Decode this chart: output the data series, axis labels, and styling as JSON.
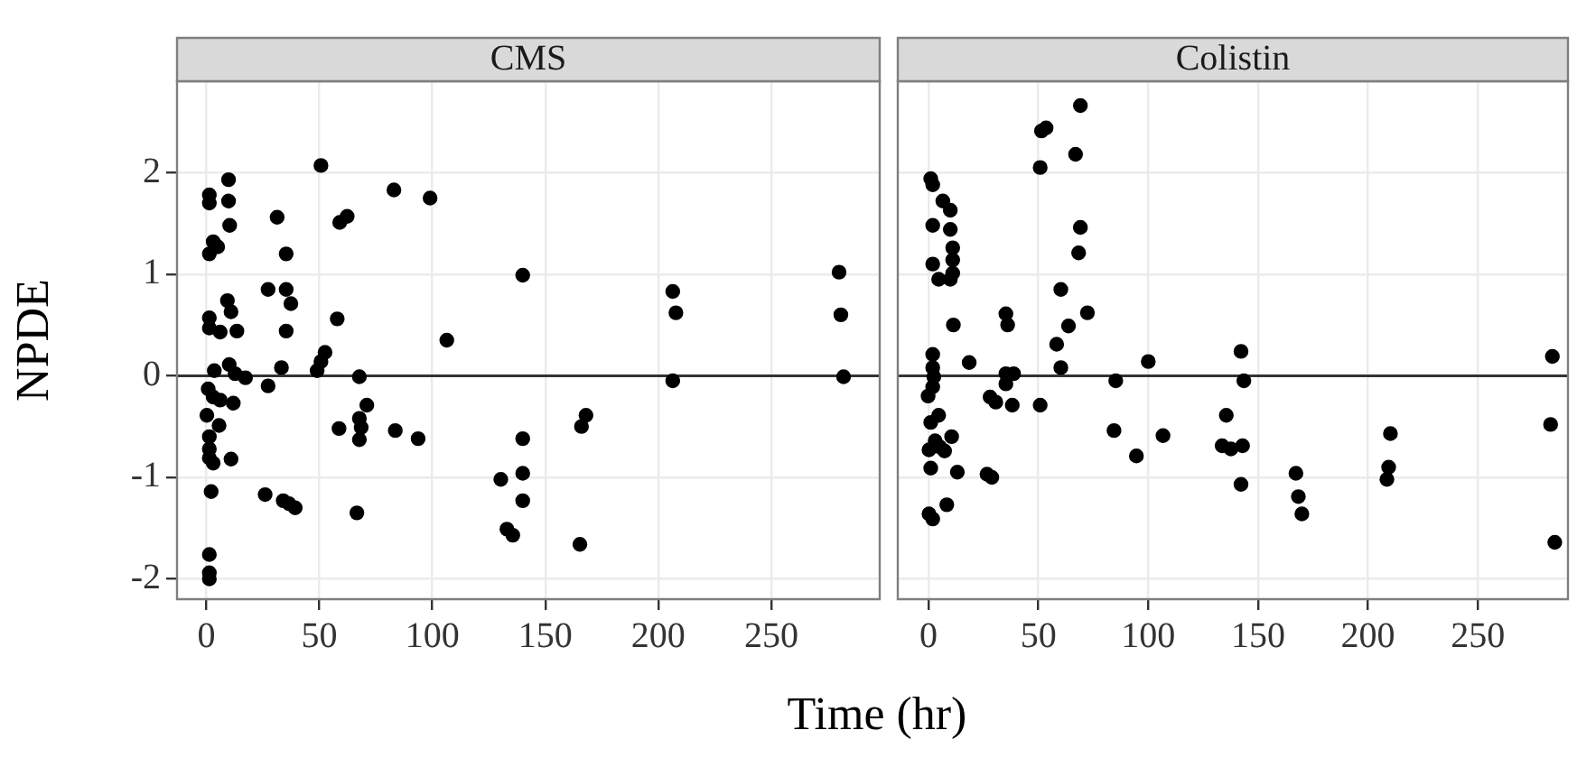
{
  "chart_data": [
    {
      "type": "scatter",
      "title": "CMS",
      "ylabel": "NPDE",
      "xlabel": "Time (hr)",
      "color": "#000000",
      "marker": "circle",
      "grid": true,
      "xlim": [
        -13,
        298
      ],
      "ylim": [
        -2.2,
        2.9
      ],
      "xticks": [
        0,
        50,
        100,
        150,
        200,
        250
      ],
      "yticks": [
        -2,
        -1,
        0,
        1,
        2
      ],
      "ref_lines": [
        {
          "axis": "y",
          "value": 0,
          "color": "#333333"
        }
      ],
      "x": [
        1.3,
        1.3,
        9.8,
        9.8,
        10.3,
        3,
        1.3,
        5,
        31.3,
        35.3,
        50.7,
        59,
        62.3,
        83,
        99,
        140,
        27.3,
        35.3,
        37.4,
        9.3,
        10.9,
        1.3,
        1.3,
        6.1,
        13.5,
        35.3,
        57.9,
        106.4,
        52.5,
        50.7,
        49,
        33.2,
        3.5,
        10.1,
        12.7,
        17.3,
        67.7,
        0.8,
        27.3,
        3,
        6.1,
        11.9,
        71,
        0.2,
        5.6,
        67.7,
        68.5,
        58.7,
        83.6,
        93.7,
        67.7,
        140,
        1.3,
        1.3,
        1.3,
        3,
        10.9,
        140,
        130.3,
        140,
        2.1,
        26,
        34,
        36.6,
        39.3,
        66.6,
        133,
        135.6,
        1.3,
        1.3,
        1.3,
        168,
        166,
        165.3,
        206.4,
        207.8,
        206.4,
        280,
        280.8,
        282
      ],
      "values": [
        1.78,
        1.7,
        1.93,
        1.72,
        1.48,
        1.32,
        1.2,
        1.27,
        1.56,
        1.2,
        2.07,
        1.51,
        1.57,
        1.83,
        1.75,
        0.99,
        0.85,
        0.85,
        0.71,
        0.74,
        0.63,
        0.57,
        0.47,
        0.43,
        0.44,
        0.44,
        0.56,
        0.35,
        0.23,
        0.14,
        0.05,
        0.08,
        0.05,
        0.11,
        0.02,
        -0.02,
        -0.01,
        -0.13,
        -0.1,
        -0.21,
        -0.24,
        -0.27,
        -0.29,
        -0.39,
        -0.49,
        -0.42,
        -0.51,
        -0.52,
        -0.54,
        -0.62,
        -0.63,
        -0.62,
        -0.6,
        -0.72,
        -0.81,
        -0.86,
        -0.82,
        -0.96,
        -1.02,
        -1.23,
        -1.14,
        -1.17,
        -1.23,
        -1.26,
        -1.3,
        -1.35,
        -1.51,
        -1.57,
        -1.76,
        -1.94,
        -2.0,
        -0.39,
        -0.5,
        -1.66,
        0.83,
        0.62,
        -0.05,
        1.02,
        0.6,
        -0.01
      ]
    },
    {
      "type": "scatter",
      "title": "Colistin",
      "color": "#000000",
      "marker": "circle",
      "grid": true,
      "tick_labels": "x",
      "xlim": [
        -14,
        291
      ],
      "ylim": [
        -2.2,
        2.9
      ],
      "xticks": [
        0,
        50,
        100,
        150,
        200,
        250
      ],
      "yticks": [
        -2,
        -1,
        0,
        1,
        2
      ],
      "ref_lines": [
        {
          "axis": "y",
          "value": 0,
          "color": "#333333"
        }
      ],
      "x": [
        1,
        1.9,
        6.5,
        9.9,
        1.9,
        9.9,
        11,
        11,
        1.9,
        4.6,
        9.9,
        11,
        50.8,
        51.4,
        53.5,
        69.1,
        66.9,
        69.1,
        68.3,
        60.2,
        72.3,
        63.7,
        58.3,
        60.2,
        35.2,
        36,
        11.3,
        18.5,
        1.9,
        1.9,
        2.4,
        1.9,
        -0.2,
        35.2,
        38.7,
        35.2,
        28,
        30.6,
        38.1,
        50.8,
        85.2,
        100,
        84.4,
        94.6,
        106.7,
        4.6,
        1,
        10.5,
        3,
        5.1,
        0.2,
        7.3,
        1,
        13.1,
        26.6,
        28.8,
        8.3,
        0.2,
        1.9,
        135.5,
        133.6,
        142.2,
        143.5,
        137.6,
        142.9,
        142.2,
        167.2,
        168.3,
        169.9,
        210.2,
        209.4,
        208.6,
        283.9,
        283.1,
        285
      ],
      "values": [
        1.94,
        1.88,
        1.72,
        1.63,
        1.48,
        1.44,
        1.26,
        1.14,
        1.1,
        0.95,
        0.95,
        1.01,
        2.05,
        2.41,
        2.44,
        2.66,
        2.18,
        1.46,
        1.21,
        0.85,
        0.62,
        0.49,
        0.31,
        0.08,
        0.61,
        0.5,
        0.5,
        0.13,
        0.21,
        0.08,
        -0.01,
        -0.11,
        -0.2,
        0.02,
        0.02,
        -0.08,
        -0.21,
        -0.26,
        -0.29,
        -0.29,
        -0.05,
        0.14,
        -0.54,
        -0.79,
        -0.59,
        -0.39,
        -0.46,
        -0.6,
        -0.64,
        -0.7,
        -0.73,
        -0.74,
        -0.91,
        -0.95,
        -0.97,
        -1.0,
        -1.27,
        -1.36,
        -1.41,
        -0.39,
        -0.69,
        0.24,
        -0.05,
        -0.72,
        -0.69,
        -1.07,
        -0.96,
        -1.19,
        -1.36,
        -0.57,
        -0.9,
        -1.02,
        0.19,
        -0.48,
        -1.64
      ]
    }
  ]
}
